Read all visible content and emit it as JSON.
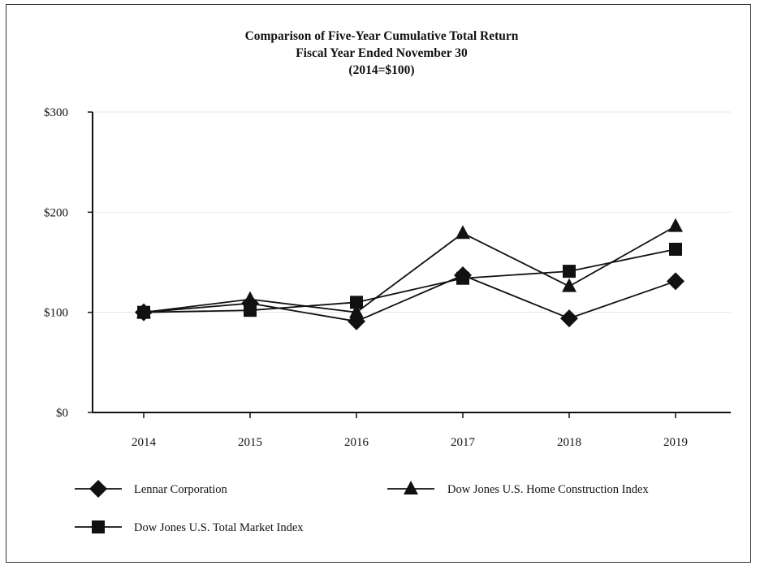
{
  "chart_data": {
    "type": "line",
    "title": [
      "Comparison of Five-Year Cumulative Total Return",
      "Fiscal Year Ended November 30",
      "(2014=$100)"
    ],
    "categories": [
      "2014",
      "2015",
      "2016",
      "2017",
      "2018",
      "2019"
    ],
    "ylim": [
      0,
      300
    ],
    "yticks": [
      0,
      100,
      200,
      300
    ],
    "ytick_labels": [
      "$0",
      "$100",
      "$200",
      "$300"
    ],
    "grid": true,
    "legend_position": "bottom",
    "series": [
      {
        "name": "Lennar Corporation",
        "marker": "diamond",
        "values": [
          100,
          109,
          91,
          137,
          94,
          131
        ]
      },
      {
        "name": "Dow Jones U.S. Home Construction Index",
        "marker": "triangle",
        "values": [
          100,
          113,
          100,
          179,
          126,
          186
        ]
      },
      {
        "name": "Dow Jones U.S. Total Market Index",
        "marker": "square",
        "values": [
          100,
          102,
          110,
          134,
          141,
          163
        ]
      }
    ],
    "colors": {
      "line": "#111111",
      "grid": "#e6e6e6",
      "axis": "#111111"
    }
  }
}
